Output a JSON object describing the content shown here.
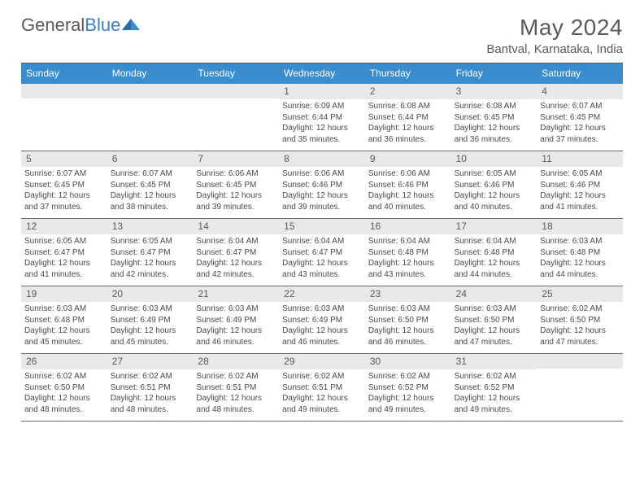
{
  "logo": {
    "text1": "General",
    "text2": "Blue"
  },
  "title": "May 2024",
  "location": "Bantval, Karnataka, India",
  "day_names": [
    "Sunday",
    "Monday",
    "Tuesday",
    "Wednesday",
    "Thursday",
    "Friday",
    "Saturday"
  ],
  "colors": {
    "header_bg": "#3a8ccc",
    "daynum_bg": "#e8e9ea",
    "text": "#5a5a5a",
    "rule": "#6a6a6a"
  },
  "weeks": [
    [
      {
        "n": "",
        "sr": "",
        "ss": "",
        "dl": ""
      },
      {
        "n": "",
        "sr": "",
        "ss": "",
        "dl": ""
      },
      {
        "n": "",
        "sr": "",
        "ss": "",
        "dl": ""
      },
      {
        "n": "1",
        "sr": "Sunrise: 6:09 AM",
        "ss": "Sunset: 6:44 PM",
        "dl": "Daylight: 12 hours and 35 minutes."
      },
      {
        "n": "2",
        "sr": "Sunrise: 6:08 AM",
        "ss": "Sunset: 6:44 PM",
        "dl": "Daylight: 12 hours and 36 minutes."
      },
      {
        "n": "3",
        "sr": "Sunrise: 6:08 AM",
        "ss": "Sunset: 6:45 PM",
        "dl": "Daylight: 12 hours and 36 minutes."
      },
      {
        "n": "4",
        "sr": "Sunrise: 6:07 AM",
        "ss": "Sunset: 6:45 PM",
        "dl": "Daylight: 12 hours and 37 minutes."
      }
    ],
    [
      {
        "n": "5",
        "sr": "Sunrise: 6:07 AM",
        "ss": "Sunset: 6:45 PM",
        "dl": "Daylight: 12 hours and 37 minutes."
      },
      {
        "n": "6",
        "sr": "Sunrise: 6:07 AM",
        "ss": "Sunset: 6:45 PM",
        "dl": "Daylight: 12 hours and 38 minutes."
      },
      {
        "n": "7",
        "sr": "Sunrise: 6:06 AM",
        "ss": "Sunset: 6:45 PM",
        "dl": "Daylight: 12 hours and 39 minutes."
      },
      {
        "n": "8",
        "sr": "Sunrise: 6:06 AM",
        "ss": "Sunset: 6:46 PM",
        "dl": "Daylight: 12 hours and 39 minutes."
      },
      {
        "n": "9",
        "sr": "Sunrise: 6:06 AM",
        "ss": "Sunset: 6:46 PM",
        "dl": "Daylight: 12 hours and 40 minutes."
      },
      {
        "n": "10",
        "sr": "Sunrise: 6:05 AM",
        "ss": "Sunset: 6:46 PM",
        "dl": "Daylight: 12 hours and 40 minutes."
      },
      {
        "n": "11",
        "sr": "Sunrise: 6:05 AM",
        "ss": "Sunset: 6:46 PM",
        "dl": "Daylight: 12 hours and 41 minutes."
      }
    ],
    [
      {
        "n": "12",
        "sr": "Sunrise: 6:05 AM",
        "ss": "Sunset: 6:47 PM",
        "dl": "Daylight: 12 hours and 41 minutes."
      },
      {
        "n": "13",
        "sr": "Sunrise: 6:05 AM",
        "ss": "Sunset: 6:47 PM",
        "dl": "Daylight: 12 hours and 42 minutes."
      },
      {
        "n": "14",
        "sr": "Sunrise: 6:04 AM",
        "ss": "Sunset: 6:47 PM",
        "dl": "Daylight: 12 hours and 42 minutes."
      },
      {
        "n": "15",
        "sr": "Sunrise: 6:04 AM",
        "ss": "Sunset: 6:47 PM",
        "dl": "Daylight: 12 hours and 43 minutes."
      },
      {
        "n": "16",
        "sr": "Sunrise: 6:04 AM",
        "ss": "Sunset: 6:48 PM",
        "dl": "Daylight: 12 hours and 43 minutes."
      },
      {
        "n": "17",
        "sr": "Sunrise: 6:04 AM",
        "ss": "Sunset: 6:48 PM",
        "dl": "Daylight: 12 hours and 44 minutes."
      },
      {
        "n": "18",
        "sr": "Sunrise: 6:03 AM",
        "ss": "Sunset: 6:48 PM",
        "dl": "Daylight: 12 hours and 44 minutes."
      }
    ],
    [
      {
        "n": "19",
        "sr": "Sunrise: 6:03 AM",
        "ss": "Sunset: 6:48 PM",
        "dl": "Daylight: 12 hours and 45 minutes."
      },
      {
        "n": "20",
        "sr": "Sunrise: 6:03 AM",
        "ss": "Sunset: 6:49 PM",
        "dl": "Daylight: 12 hours and 45 minutes."
      },
      {
        "n": "21",
        "sr": "Sunrise: 6:03 AM",
        "ss": "Sunset: 6:49 PM",
        "dl": "Daylight: 12 hours and 46 minutes."
      },
      {
        "n": "22",
        "sr": "Sunrise: 6:03 AM",
        "ss": "Sunset: 6:49 PM",
        "dl": "Daylight: 12 hours and 46 minutes."
      },
      {
        "n": "23",
        "sr": "Sunrise: 6:03 AM",
        "ss": "Sunset: 6:50 PM",
        "dl": "Daylight: 12 hours and 46 minutes."
      },
      {
        "n": "24",
        "sr": "Sunrise: 6:03 AM",
        "ss": "Sunset: 6:50 PM",
        "dl": "Daylight: 12 hours and 47 minutes."
      },
      {
        "n": "25",
        "sr": "Sunrise: 6:02 AM",
        "ss": "Sunset: 6:50 PM",
        "dl": "Daylight: 12 hours and 47 minutes."
      }
    ],
    [
      {
        "n": "26",
        "sr": "Sunrise: 6:02 AM",
        "ss": "Sunset: 6:50 PM",
        "dl": "Daylight: 12 hours and 48 minutes."
      },
      {
        "n": "27",
        "sr": "Sunrise: 6:02 AM",
        "ss": "Sunset: 6:51 PM",
        "dl": "Daylight: 12 hours and 48 minutes."
      },
      {
        "n": "28",
        "sr": "Sunrise: 6:02 AM",
        "ss": "Sunset: 6:51 PM",
        "dl": "Daylight: 12 hours and 48 minutes."
      },
      {
        "n": "29",
        "sr": "Sunrise: 6:02 AM",
        "ss": "Sunset: 6:51 PM",
        "dl": "Daylight: 12 hours and 49 minutes."
      },
      {
        "n": "30",
        "sr": "Sunrise: 6:02 AM",
        "ss": "Sunset: 6:52 PM",
        "dl": "Daylight: 12 hours and 49 minutes."
      },
      {
        "n": "31",
        "sr": "Sunrise: 6:02 AM",
        "ss": "Sunset: 6:52 PM",
        "dl": "Daylight: 12 hours and 49 minutes."
      },
      {
        "n": "",
        "sr": "",
        "ss": "",
        "dl": ""
      }
    ]
  ]
}
